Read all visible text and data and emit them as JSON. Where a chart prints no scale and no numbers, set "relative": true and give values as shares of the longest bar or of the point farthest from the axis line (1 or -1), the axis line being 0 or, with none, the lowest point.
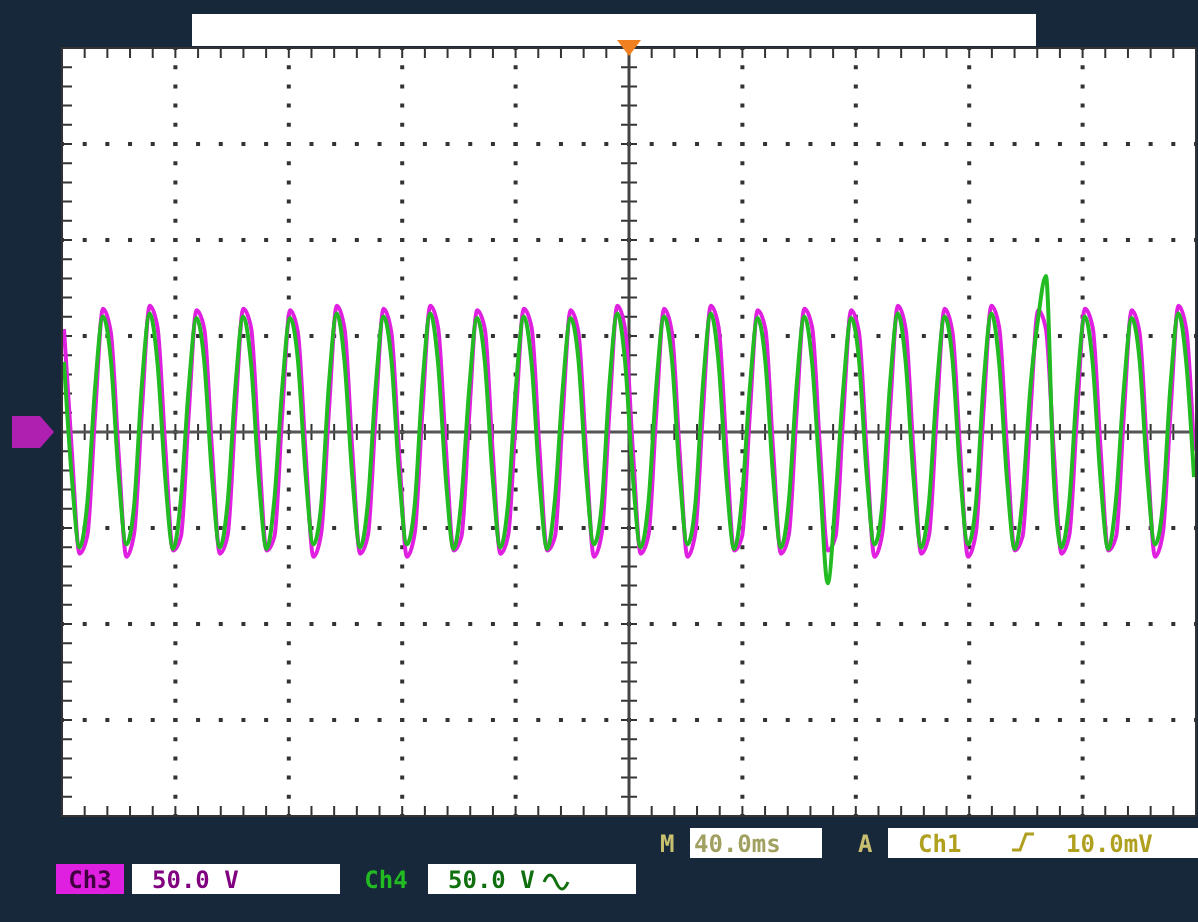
{
  "chart_data": {
    "type": "line",
    "relative": true,
    "legend": "bottom",
    "grid": true,
    "marker": "none",
    "line_style": "solid",
    "categories": [
      null,
      null,
      null,
      null,
      null,
      null,
      null,
      null,
      null,
      null,
      null,
      null,
      null,
      null,
      null,
      null,
      null,
      null,
      null,
      null,
      null,
      null,
      null,
      null,
      null,
      null,
      null,
      null,
      null,
      null,
      null,
      null,
      null,
      null,
      null,
      null,
      null,
      null,
      null,
      null,
      null,
      null,
      null,
      null,
      null,
      null,
      null,
      null,
      null,
      null,
      null,
      null,
      null,
      null,
      null,
      null,
      null,
      null,
      null,
      null,
      null,
      null,
      null,
      null,
      null,
      null,
      null,
      null,
      null,
      null,
      null,
      null,
      null,
      null,
      null,
      null,
      null,
      null,
      null,
      null,
      null,
      null,
      null,
      null,
      null,
      null,
      null,
      null,
      null,
      null,
      null,
      null,
      null,
      null,
      null,
      null,
      null,
      null,
      null,
      null,
      null,
      null,
      null,
      null,
      null,
      null,
      null,
      null,
      null,
      null,
      null,
      null,
      null,
      null,
      null,
      null,
      null,
      null,
      null,
      null,
      null,
      null,
      null,
      null,
      null,
      null,
      null,
      null,
      null,
      null,
      null,
      null,
      null,
      null,
      null,
      null,
      null,
      null,
      null,
      null,
      null,
      null,
      null,
      null,
      null,
      null
    ],
    "series": [
      {
        "name": "Ch3",
        "color": "#e020e0",
        "values": [
          0.66,
          -0.12,
          -0.78,
          -0.66,
          0.12,
          0.79,
          0.64,
          -0.13,
          -0.8,
          -0.65,
          0.14,
          0.81,
          0.67,
          -0.1,
          -0.76,
          -0.67,
          0.11,
          0.78,
          0.66,
          -0.12,
          -0.78,
          -0.66,
          0.12,
          0.79,
          0.67,
          -0.1,
          -0.76,
          -0.67,
          0.11,
          0.78,
          0.64,
          -0.13,
          -0.8,
          -0.65,
          0.14,
          0.81,
          0.66,
          -0.12,
          -0.78,
          -0.66,
          0.12,
          0.79,
          0.64,
          -0.13,
          -0.8,
          -0.65,
          0.14,
          0.81,
          0.67,
          -0.1,
          -0.76,
          -0.67,
          0.11,
          0.78,
          0.66,
          -0.12,
          -0.78,
          -0.66,
          0.12,
          0.79,
          0.67,
          -0.1,
          -0.76,
          -0.67,
          0.11,
          0.78,
          0.64,
          -0.13,
          -0.8,
          -0.65,
          0.14,
          0.81,
          0.66,
          -0.12,
          -0.78,
          -0.66,
          0.12,
          0.79,
          0.64,
          -0.13,
          -0.8,
          -0.65,
          0.14,
          0.81,
          0.67,
          -0.1,
          -0.76,
          -0.67,
          0.11,
          0.78,
          0.66,
          -0.12,
          -0.78,
          -0.66,
          0.12,
          0.79,
          0.67,
          -0.1,
          -0.76,
          -0.67,
          0.11,
          0.78,
          0.64,
          -0.13,
          -0.8,
          -0.65,
          0.14,
          0.81,
          0.66,
          -0.12,
          -0.78,
          -0.66,
          0.12,
          0.79,
          0.64,
          -0.13,
          -0.8,
          -0.65,
          0.14,
          0.81,
          0.67,
          -0.1,
          -0.76,
          -0.67,
          0.11,
          0.78,
          0.66,
          -0.12,
          -0.78,
          -0.66,
          0.12,
          0.79,
          0.67,
          -0.1,
          -0.76,
          -0.67,
          0.11,
          0.78,
          0.64,
          -0.13,
          -0.8,
          -0.65,
          0.14,
          0.81,
          0.66,
          -0.12
        ]
      },
      {
        "name": "Ch4",
        "color": "#22bb22",
        "values": [
          0.45,
          -0.29,
          -0.74,
          -0.45,
          0.29,
          0.74,
          0.47,
          -0.27,
          -0.72,
          -0.47,
          0.31,
          0.76,
          0.44,
          -0.3,
          -0.75,
          -0.43,
          0.28,
          0.73,
          0.45,
          -0.29,
          -0.74,
          -0.45,
          0.29,
          0.74,
          0.44,
          -0.3,
          -0.75,
          -0.43,
          0.28,
          0.73,
          0.47,
          -0.27,
          -0.72,
          -0.47,
          0.31,
          0.76,
          0.45,
          -0.29,
          -0.74,
          -0.45,
          0.29,
          0.74,
          0.47,
          -0.27,
          -0.72,
          -0.47,
          0.31,
          0.76,
          0.44,
          -0.3,
          -0.75,
          -0.43,
          0.28,
          0.73,
          0.45,
          -0.29,
          -0.74,
          -0.45,
          0.29,
          0.74,
          0.44,
          -0.3,
          -0.75,
          -0.43,
          0.28,
          0.73,
          0.47,
          -0.27,
          -0.72,
          -0.47,
          0.31,
          0.76,
          0.45,
          -0.29,
          -0.74,
          -0.45,
          0.29,
          0.74,
          0.47,
          -0.27,
          -0.72,
          -0.47,
          0.31,
          0.76,
          0.44,
          -0.3,
          -0.75,
          -0.43,
          0.28,
          0.73,
          0.45,
          -0.29,
          -0.74,
          -0.45,
          0.29,
          0.74,
          0.44,
          -0.3,
          -0.97,
          -0.43,
          0.28,
          0.73,
          0.47,
          -0.27,
          -0.72,
          -0.47,
          0.31,
          0.76,
          0.45,
          -0.29,
          -0.74,
          -0.45,
          0.29,
          0.74,
          0.47,
          -0.27,
          -0.72,
          -0.47,
          0.31,
          0.76,
          0.44,
          -0.3,
          -0.75,
          -0.43,
          0.28,
          0.73,
          1.0,
          -0.29,
          -0.74,
          -0.45,
          0.29,
          0.74,
          0.44,
          -0.3,
          -0.75,
          -0.43,
          0.28,
          0.73,
          0.47,
          -0.27,
          -0.72,
          -0.47,
          0.31,
          0.76,
          0.45,
          -0.29
        ]
      }
    ],
    "annotations": [
      "50.0 V",
      "50.0 V",
      "M 40.0ms",
      "A",
      "Ch1",
      "10.0mV"
    ]
  }
}
